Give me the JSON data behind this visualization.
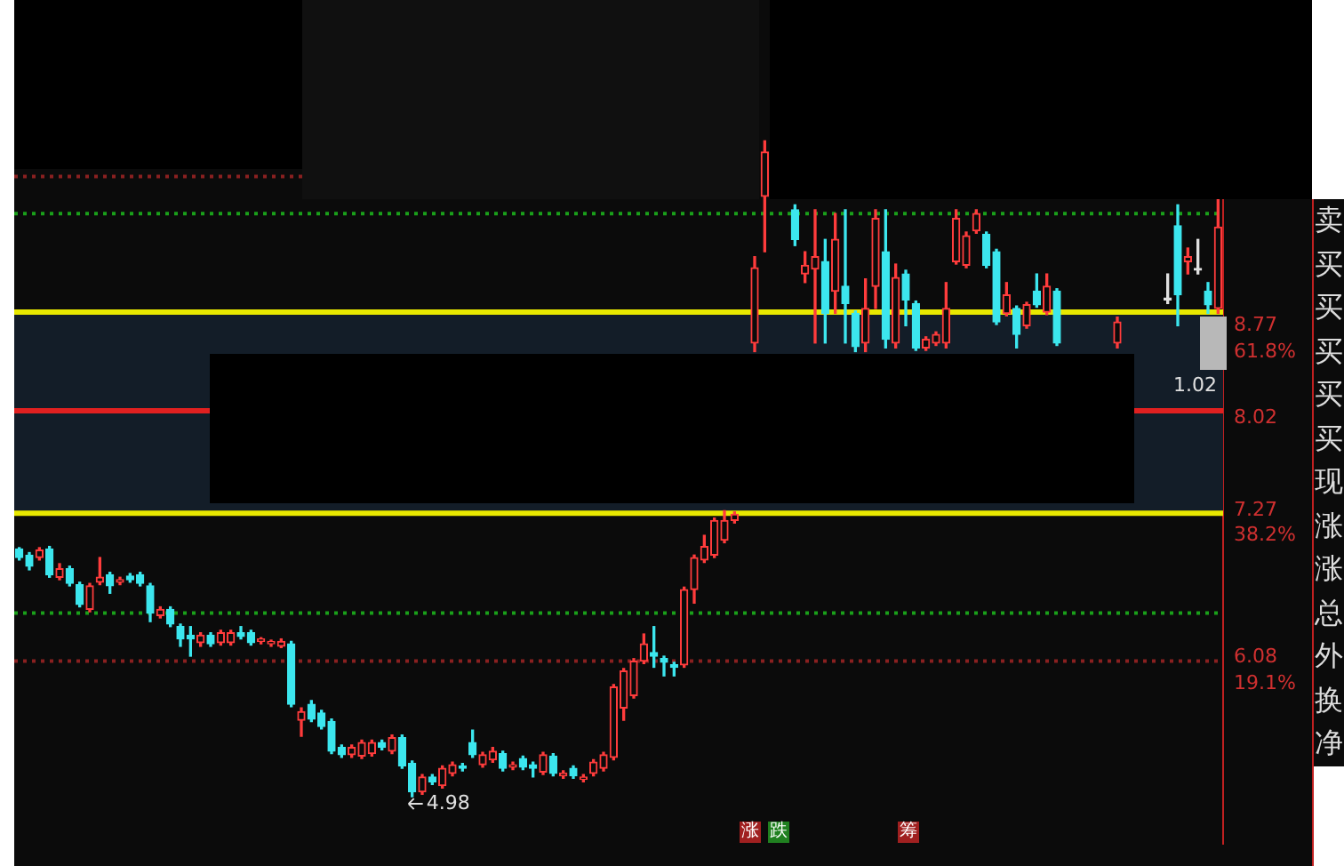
{
  "chart_data": {
    "type": "candlestick",
    "categories": [
      null,
      null,
      null,
      null,
      null,
      null,
      null,
      null,
      null,
      null,
      null,
      null,
      null,
      null,
      null,
      null,
      null,
      null,
      null,
      null,
      null,
      null,
      null,
      null,
      null,
      null,
      null,
      null,
      null,
      null,
      null,
      null,
      null,
      null,
      null,
      null,
      null,
      null,
      null,
      null,
      null,
      null,
      null,
      null,
      null,
      null,
      null,
      null,
      null,
      null,
      null,
      null,
      null,
      null,
      null,
      null,
      null,
      null,
      null,
      null,
      null,
      null,
      null,
      null,
      null,
      null,
      null,
      null,
      null,
      null,
      null,
      null,
      null,
      null,
      null,
      null,
      null,
      null,
      null,
      null,
      null,
      null,
      null,
      null,
      null,
      null,
      null,
      null,
      null,
      null,
      null,
      null,
      null,
      null,
      null,
      null,
      null,
      null,
      null,
      null,
      null,
      null,
      null,
      null,
      null,
      null,
      null,
      null,
      null,
      null,
      null,
      null,
      null,
      null,
      null,
      null,
      null,
      null,
      null,
      null
    ],
    "ohlc": [
      [
        6.99,
        7.0,
        6.9,
        6.92
      ],
      [
        6.94,
        6.96,
        6.82,
        6.85
      ],
      [
        6.92,
        7.0,
        6.9,
        6.98
      ],
      [
        6.99,
        7.01,
        6.76,
        6.78
      ],
      [
        6.76,
        6.87,
        6.74,
        6.83
      ],
      [
        6.83,
        6.85,
        6.69,
        6.71
      ],
      [
        6.7,
        6.72,
        6.52,
        6.54
      ],
      [
        6.5,
        6.71,
        6.48,
        6.69
      ],
      [
        6.72,
        6.92,
        6.7,
        6.76
      ],
      [
        6.78,
        6.8,
        6.63,
        6.69
      ],
      [
        6.72,
        6.76,
        6.7,
        6.74
      ],
      [
        6.77,
        6.79,
        6.72,
        6.74
      ],
      [
        6.78,
        6.8,
        6.69,
        6.71
      ],
      [
        6.69,
        6.71,
        6.4,
        6.47
      ],
      [
        6.45,
        6.52,
        6.43,
        6.5
      ],
      [
        6.5,
        6.52,
        6.36,
        6.38
      ],
      [
        6.36,
        6.38,
        6.2,
        6.26
      ],
      [
        6.29,
        6.36,
        6.12,
        6.26
      ],
      [
        6.23,
        6.31,
        6.2,
        6.29
      ],
      [
        6.29,
        6.31,
        6.2,
        6.22
      ],
      [
        6.23,
        6.33,
        6.21,
        6.31
      ],
      [
        6.23,
        6.33,
        6.21,
        6.31
      ],
      [
        6.31,
        6.36,
        6.26,
        6.28
      ],
      [
        6.31,
        6.33,
        6.21,
        6.23
      ],
      [
        6.24,
        6.27,
        6.22,
        6.26
      ],
      [
        6.22,
        6.25,
        6.2,
        6.24
      ],
      [
        6.2,
        6.26,
        6.19,
        6.24
      ],
      [
        6.22,
        6.24,
        5.71,
        5.73
      ],
      [
        5.6,
        5.7,
        5.47,
        5.67
      ],
      [
        5.73,
        5.76,
        5.59,
        5.61
      ],
      [
        5.66,
        5.68,
        5.53,
        5.55
      ],
      [
        5.59,
        5.61,
        5.33,
        5.35
      ],
      [
        5.38,
        5.4,
        5.3,
        5.32
      ],
      [
        5.32,
        5.4,
        5.3,
        5.38
      ],
      [
        5.31,
        5.44,
        5.29,
        5.42
      ],
      [
        5.33,
        5.44,
        5.31,
        5.42
      ],
      [
        5.42,
        5.44,
        5.36,
        5.38
      ],
      [
        5.35,
        5.48,
        5.33,
        5.46
      ],
      [
        5.46,
        5.48,
        5.21,
        5.23
      ],
      [
        5.25,
        5.27,
        4.98,
        5.02
      ],
      [
        5.02,
        5.16,
        5.0,
        5.14
      ],
      [
        5.14,
        5.16,
        5.08,
        5.1
      ],
      [
        5.07,
        5.23,
        5.05,
        5.21
      ],
      [
        5.17,
        5.26,
        5.15,
        5.24
      ],
      [
        5.23,
        5.25,
        5.19,
        5.21
      ],
      [
        5.42,
        5.52,
        5.3,
        5.32
      ],
      [
        5.24,
        5.34,
        5.22,
        5.32
      ],
      [
        5.28,
        5.38,
        5.26,
        5.35
      ],
      [
        5.33,
        5.35,
        5.19,
        5.21
      ],
      [
        5.22,
        5.26,
        5.2,
        5.24
      ],
      [
        5.29,
        5.31,
        5.2,
        5.22
      ],
      [
        5.24,
        5.26,
        5.14,
        5.21
      ],
      [
        5.18,
        5.34,
        5.16,
        5.32
      ],
      [
        5.31,
        5.33,
        5.15,
        5.17
      ],
      [
        5.15,
        5.19,
        5.13,
        5.17
      ],
      [
        5.21,
        5.23,
        5.13,
        5.15
      ],
      [
        5.12,
        5.16,
        5.1,
        5.14
      ],
      [
        5.17,
        5.28,
        5.15,
        5.26
      ],
      [
        5.21,
        5.34,
        5.19,
        5.32
      ],
      [
        5.3,
        5.89,
        5.28,
        5.87
      ],
      [
        5.7,
        6.02,
        5.6,
        6.0
      ],
      [
        5.8,
        6.1,
        5.78,
        6.08
      ],
      [
        6.08,
        6.3,
        6.06,
        6.22
      ],
      [
        6.15,
        6.36,
        6.03,
        6.12
      ],
      [
        6.1,
        6.12,
        5.96,
        6.07
      ],
      [
        6.05,
        6.07,
        5.96,
        6.03
      ],
      [
        6.05,
        6.68,
        6.03,
        6.66
      ],
      [
        6.66,
        6.94,
        6.55,
        6.92
      ],
      [
        6.9,
        7.1,
        6.88,
        7.01
      ],
      [
        6.94,
        7.24,
        6.92,
        7.22
      ],
      [
        7.06,
        7.3,
        7.04,
        7.22
      ],
      [
        7.22,
        7.29,
        7.2,
        7.27
      ],
      null,
      [
        8.66,
        9.36,
        8.59,
        9.27
      ],
      [
        9.85,
        10.3,
        9.4,
        10.21
      ],
      null,
      null,
      [
        9.74,
        9.78,
        9.45,
        9.5
      ],
      [
        9.22,
        9.4,
        9.15,
        9.29
      ],
      [
        9.26,
        9.74,
        8.66,
        9.36
      ],
      [
        9.32,
        9.5,
        8.66,
        8.9
      ],
      [
        9.08,
        9.71,
        8.9,
        9.5
      ],
      [
        9.12,
        9.74,
        8.66,
        8.98
      ],
      [
        8.9,
        8.92,
        8.59,
        8.63
      ],
      [
        8.66,
        9.18,
        8.59,
        8.94
      ],
      [
        9.12,
        9.74,
        8.94,
        9.67
      ],
      [
        9.4,
        9.74,
        8.62,
        8.69
      ],
      [
        8.66,
        9.3,
        8.62,
        9.19
      ],
      [
        9.22,
        9.25,
        8.8,
        9.01
      ],
      [
        8.98,
        9.0,
        8.6,
        8.62
      ],
      [
        8.62,
        8.71,
        8.6,
        8.69
      ],
      [
        8.66,
        8.75,
        8.64,
        8.73
      ],
      [
        8.66,
        9.15,
        8.62,
        8.94
      ],
      [
        9.32,
        9.74,
        9.3,
        9.67
      ],
      [
        9.29,
        9.56,
        9.27,
        9.53
      ],
      [
        9.57,
        9.74,
        9.55,
        9.71
      ],
      [
        9.54,
        9.56,
        9.27,
        9.29
      ],
      [
        9.4,
        9.42,
        8.81,
        8.83
      ],
      [
        8.9,
        9.15,
        8.88,
        9.05
      ],
      [
        8.94,
        8.96,
        8.62,
        8.73
      ],
      [
        8.8,
        8.99,
        8.78,
        8.97
      ],
      [
        9.08,
        9.22,
        8.95,
        8.97
      ],
      [
        8.91,
        9.22,
        8.89,
        9.12
      ],
      [
        9.08,
        9.1,
        8.64,
        8.66
      ],
      null,
      null,
      null,
      null,
      null,
      [
        8.66,
        8.87,
        8.62,
        8.83
      ],
      null,
      null,
      null,
      null,
      [
        9.01,
        9.22,
        8.98,
        9.01
      ],
      [
        9.61,
        9.78,
        8.8,
        9.05
      ],
      [
        9.32,
        9.43,
        9.22,
        9.36
      ],
      [
        9.25,
        9.5,
        9.22,
        9.25
      ],
      [
        9.08,
        9.15,
        8.9,
        8.97
      ],
      [
        8.94,
        9.85,
        8.9,
        9.6
      ]
    ],
    "colors": [
      "#3ce6ee",
      "#3ce6ee",
      "#ff3c3c",
      "#3ce6ee",
      "#ff3c3c",
      "#3ce6ee",
      "#3ce6ee",
      "#ff3c3c",
      "#ff3c3c",
      "#3ce6ee",
      "#ff3c3c",
      "#3ce6ee",
      "#3ce6ee",
      "#3ce6ee",
      "#ff3c3c",
      "#3ce6ee",
      "#3ce6ee",
      "#3ce6ee",
      "#ff3c3c",
      "#3ce6ee",
      "#ff3c3c",
      "#ff3c3c",
      "#3ce6ee",
      "#3ce6ee",
      "#ff3c3c",
      "#ff3c3c",
      "#ff3c3c",
      "#3ce6ee",
      "#ff3c3c",
      "#3ce6ee",
      "#3ce6ee",
      "#3ce6ee",
      "#3ce6ee",
      "#ff3c3c",
      "#ff3c3c",
      "#ff3c3c",
      "#3ce6ee",
      "#ff3c3c",
      "#3ce6ee",
      "#3ce6ee",
      "#ff3c3c",
      "#3ce6ee",
      "#ff3c3c",
      "#ff3c3c",
      "#3ce6ee",
      "#3ce6ee",
      "#ff3c3c",
      "#ff3c3c",
      "#3ce6ee",
      "#ff3c3c",
      "#3ce6ee",
      "#3ce6ee",
      "#ff3c3c",
      "#3ce6ee",
      "#ff3c3c",
      "#3ce6ee",
      "#ff3c3c",
      "#ff3c3c",
      "#ff3c3c",
      "#ff3c3c",
      "#ff3c3c",
      "#ff3c3c",
      "#ff3c3c",
      "#3ce6ee",
      "#3ce6ee",
      "#3ce6ee",
      "#ff3c3c",
      "#ff3c3c",
      "#ff3c3c",
      "#ff3c3c",
      "#ff3c3c",
      "#ff3c3c",
      null,
      "#ff3c3c",
      "#ff3c3c",
      null,
      null,
      "#3ce6ee",
      "#ff3c3c",
      "#ff3c3c",
      "#3ce6ee",
      "#ff3c3c",
      "#3ce6ee",
      "#3ce6ee",
      "#ff3c3c",
      "#ff3c3c",
      "#3ce6ee",
      "#ff3c3c",
      "#3ce6ee",
      "#3ce6ee",
      "#ff3c3c",
      "#ff3c3c",
      "#ff3c3c",
      "#ff3c3c",
      "#ff3c3c",
      "#ff3c3c",
      "#3ce6ee",
      "#3ce6ee",
      "#ff3c3c",
      "#3ce6ee",
      "#ff3c3c",
      "#3ce6ee",
      "#ff3c3c",
      "#3ce6ee",
      null,
      null,
      null,
      null,
      null,
      "#ff3c3c",
      null,
      null,
      null,
      null,
      "#e0e0e0",
      "#3ce6ee",
      "#ff3c3c",
      "#e0e0e0",
      "#3ce6ee",
      "#ff3c3c"
    ],
    "ylim": [
      4.6,
      11.26
    ],
    "yticks": [
      8.77,
      8.02,
      7.27,
      6.08
    ],
    "y2lim": [
      -4.2,
      101.5
    ],
    "y2ticks": [
      {
        "value": 61.8,
        "label": "61.8%"
      },
      {
        "value": 38.2,
        "label": "38.2%"
      },
      {
        "value": 19.1,
        "label": "19.1%"
      }
    ],
    "tick_labels": "y",
    "bands": [
      {
        "axis": "y",
        "from": 7.28,
        "to": 8.91,
        "color": "#131d28"
      }
    ],
    "ref_lines": [
      {
        "axis": "y",
        "value": 8.91,
        "color": "#e8e800",
        "line_style": "solid"
      },
      {
        "axis": "y",
        "value": 7.28,
        "color": "#e8e800",
        "line_style": "solid"
      },
      {
        "axis": "y",
        "value": 8.11,
        "color": "#e02020",
        "line_style": "solid"
      },
      {
        "axis": "y",
        "value": 9.71,
        "color": "#1aa01a",
        "line_style": "dotted"
      },
      {
        "axis": "y",
        "value": 6.47,
        "color": "#1aa01a",
        "line_style": "dotted"
      },
      {
        "axis": "y",
        "value": 10.01,
        "color": "#8a2020",
        "line_style": "dotted"
      },
      {
        "axis": "y",
        "value": 6.08,
        "color": "#8a2020",
        "line_style": "dotted"
      }
    ],
    "annotations": [
      "4.98",
      "卖买买买买买现涨涨总外换净",
      "1.02",
      "涨",
      "跌",
      "筹"
    ]
  }
}
